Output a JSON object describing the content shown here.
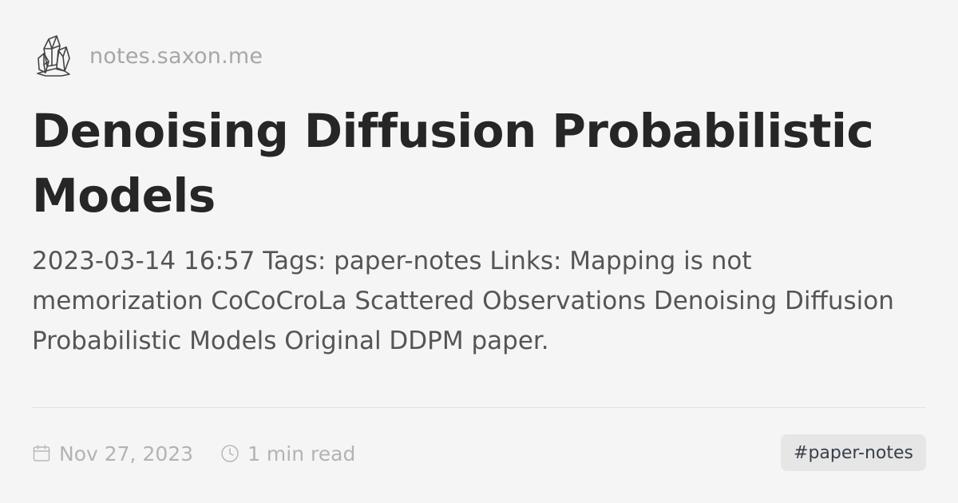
{
  "site": {
    "logo_icon": "crystal-cluster-icon",
    "name": "notes.saxon.me"
  },
  "post": {
    "title": "Denoising Diffusion Probabilistic Models",
    "excerpt": "2023-03-14 16:57 Tags: paper-notes Links: Mapping is not memorization CoCoCroLa Scattered Observations Denoising Diffusion Probabilistic Models Original DDPM paper."
  },
  "meta": {
    "date_icon": "calendar-icon",
    "date": "Nov 27, 2023",
    "read_icon": "clock-icon",
    "read_time": "1 min read"
  },
  "tags": [
    {
      "label": "#paper-notes"
    }
  ],
  "colors": {
    "background": "#f6f5f6",
    "title": "#262626",
    "excerpt": "#555555",
    "muted": "#a7a7a7",
    "tag_bg": "#e6e6e6",
    "tag_text": "#383f48"
  }
}
